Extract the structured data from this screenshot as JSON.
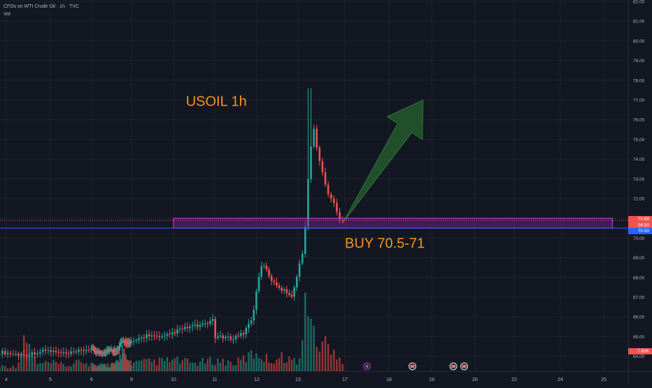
{
  "header": {
    "symbol": "CFDs on WTI Crude Oil · 1h · TVC",
    "volume_label": "Vol"
  },
  "colors": {
    "background": "#131722",
    "grid": "#1e222d",
    "up": "#26a69a",
    "down": "#ef5350",
    "text": "#b2b5be",
    "zone_fill": "#7b1fa2",
    "zone_stroke": "#c04bd8",
    "annotation_text": "#f7931e",
    "arrow_fill": "#2e7d32",
    "hline": "#2962ff"
  },
  "price_labels": {
    "current": "70.89",
    "countdown": "06:50",
    "line": "70.50",
    "volume": "7.83K"
  },
  "chart_data": {
    "type": "candlestick",
    "title": "",
    "ylim": [
      63.7,
      82.1
    ],
    "y_ticks": [
      64,
      65,
      66,
      67,
      68,
      69,
      70,
      71,
      72,
      73,
      74,
      75,
      76,
      77,
      78,
      79,
      80,
      81,
      82
    ],
    "y_tick_labels": [
      "64.00",
      "65.00",
      "66.00",
      "67.00",
      "68.00",
      "69.00",
      "70.00",
      "71.00",
      "72.00",
      "73.00",
      "74.00",
      "75.00",
      "76.00",
      "77.00",
      "78.00",
      "79.00",
      "80.00",
      "81.00",
      "82.00"
    ],
    "x_ticks": [
      {
        "label": "4",
        "day": 4
      },
      {
        "label": "5",
        "day": 5
      },
      {
        "label": "6",
        "day": 6
      },
      {
        "label": "9",
        "day": 9
      },
      {
        "label": "10",
        "day": 10
      },
      {
        "label": "11",
        "day": 11
      },
      {
        "label": "12",
        "day": 12
      },
      {
        "label": "13",
        "day": 13
      },
      {
        "label": "17",
        "day": 14
      },
      {
        "label": "18",
        "day": 15
      },
      {
        "label": "19",
        "day": 16
      },
      {
        "label": "20",
        "day": 17
      },
      {
        "label": "22",
        "day": 18
      },
      {
        "label": "24",
        "day": 19
      },
      {
        "label": "25",
        "day": 20
      }
    ],
    "price_anchors": [
      [
        3.9,
        64.2
      ],
      [
        4.4,
        64.05
      ],
      [
        4.9,
        64.3
      ],
      [
        5.4,
        64.1
      ],
      [
        6.0,
        64.4
      ],
      [
        6.6,
        64.15
      ],
      [
        7.2,
        64.3
      ],
      [
        8.0,
        64.3
      ],
      [
        8.2,
        64.7
      ],
      [
        8.6,
        64.75
      ],
      [
        8.9,
        64.6
      ],
      [
        9.1,
        64.8
      ],
      [
        9.4,
        65.1
      ],
      [
        9.7,
        64.9
      ],
      [
        10.1,
        65.3
      ],
      [
        10.4,
        65.5
      ],
      [
        10.8,
        65.6
      ],
      [
        10.95,
        65.9
      ],
      [
        11.0,
        65.0
      ],
      [
        11.4,
        64.9
      ],
      [
        11.7,
        65.2
      ],
      [
        11.9,
        66.0
      ],
      [
        12.05,
        68.0
      ],
      [
        12.15,
        68.8
      ],
      [
        12.3,
        68.0
      ],
      [
        12.6,
        67.4
      ],
      [
        12.85,
        67.1
      ],
      [
        12.95,
        67.8
      ],
      [
        13.0,
        68.4
      ],
      [
        13.08,
        69.0
      ],
      [
        13.15,
        70.5
      ],
      [
        13.23,
        73.5
      ],
      [
        13.32,
        75.7
      ],
      [
        13.45,
        74.0
      ],
      [
        13.6,
        72.5
      ],
      [
        13.75,
        71.8
      ],
      [
        13.88,
        71.0
      ],
      [
        13.95,
        70.85
      ]
    ],
    "volume_anchors": [
      [
        3.9,
        2.0
      ],
      [
        4.2,
        1.5
      ],
      [
        4.45,
        11.5
      ],
      [
        4.7,
        2.5
      ],
      [
        5.0,
        3.0
      ],
      [
        5.4,
        2.0
      ],
      [
        5.8,
        3.5
      ],
      [
        6.2,
        2.0
      ],
      [
        6.6,
        3.0
      ],
      [
        7.0,
        2.0
      ],
      [
        7.5,
        2.5
      ],
      [
        8.0,
        3.0
      ],
      [
        8.3,
        8.0
      ],
      [
        8.6,
        4.0
      ],
      [
        9.0,
        3.0
      ],
      [
        9.5,
        3.5
      ],
      [
        10.0,
        4.0
      ],
      [
        10.5,
        3.0
      ],
      [
        11.0,
        4.0
      ],
      [
        11.5,
        3.0
      ],
      [
        12.0,
        7.0
      ],
      [
        12.3,
        4.0
      ],
      [
        12.7,
        5.5
      ],
      [
        12.9,
        3.5
      ],
      [
        13.05,
        5.0
      ],
      [
        13.12,
        12.0
      ],
      [
        13.18,
        35.0
      ],
      [
        13.24,
        30.0
      ],
      [
        13.3,
        14.0
      ],
      [
        13.4,
        9.0
      ],
      [
        13.55,
        12.0
      ],
      [
        13.7,
        6.0
      ],
      [
        13.85,
        7.83
      ],
      [
        13.95,
        4.0
      ]
    ],
    "volume_max": 36,
    "highs": [
      [
        13.23,
        77.6
      ]
    ],
    "buy_zone": {
      "low": 70.5,
      "high": 71.0,
      "start_day": 10.0,
      "end_day": 20.2
    },
    "current_price": 70.89,
    "hline_price": 70.5,
    "annotations": [
      {
        "text": "USOIL 1h",
        "day": 10.3,
        "price": 76.7
      },
      {
        "text": "BUY 70.5-71",
        "day": 14.0,
        "price": 69.5
      }
    ],
    "arrow": {
      "from_day": 13.95,
      "from_price": 70.75,
      "to_day": 15.8,
      "to_price": 77.0
    },
    "event_markers": [
      {
        "day": 14.5,
        "icon": "lightning-icon"
      },
      {
        "day": 15.55,
        "icon": "flag-icon"
      },
      {
        "day": 16.5,
        "icon": "flag-icon"
      },
      {
        "day": 16.75,
        "icon": "flag-icon"
      }
    ]
  }
}
